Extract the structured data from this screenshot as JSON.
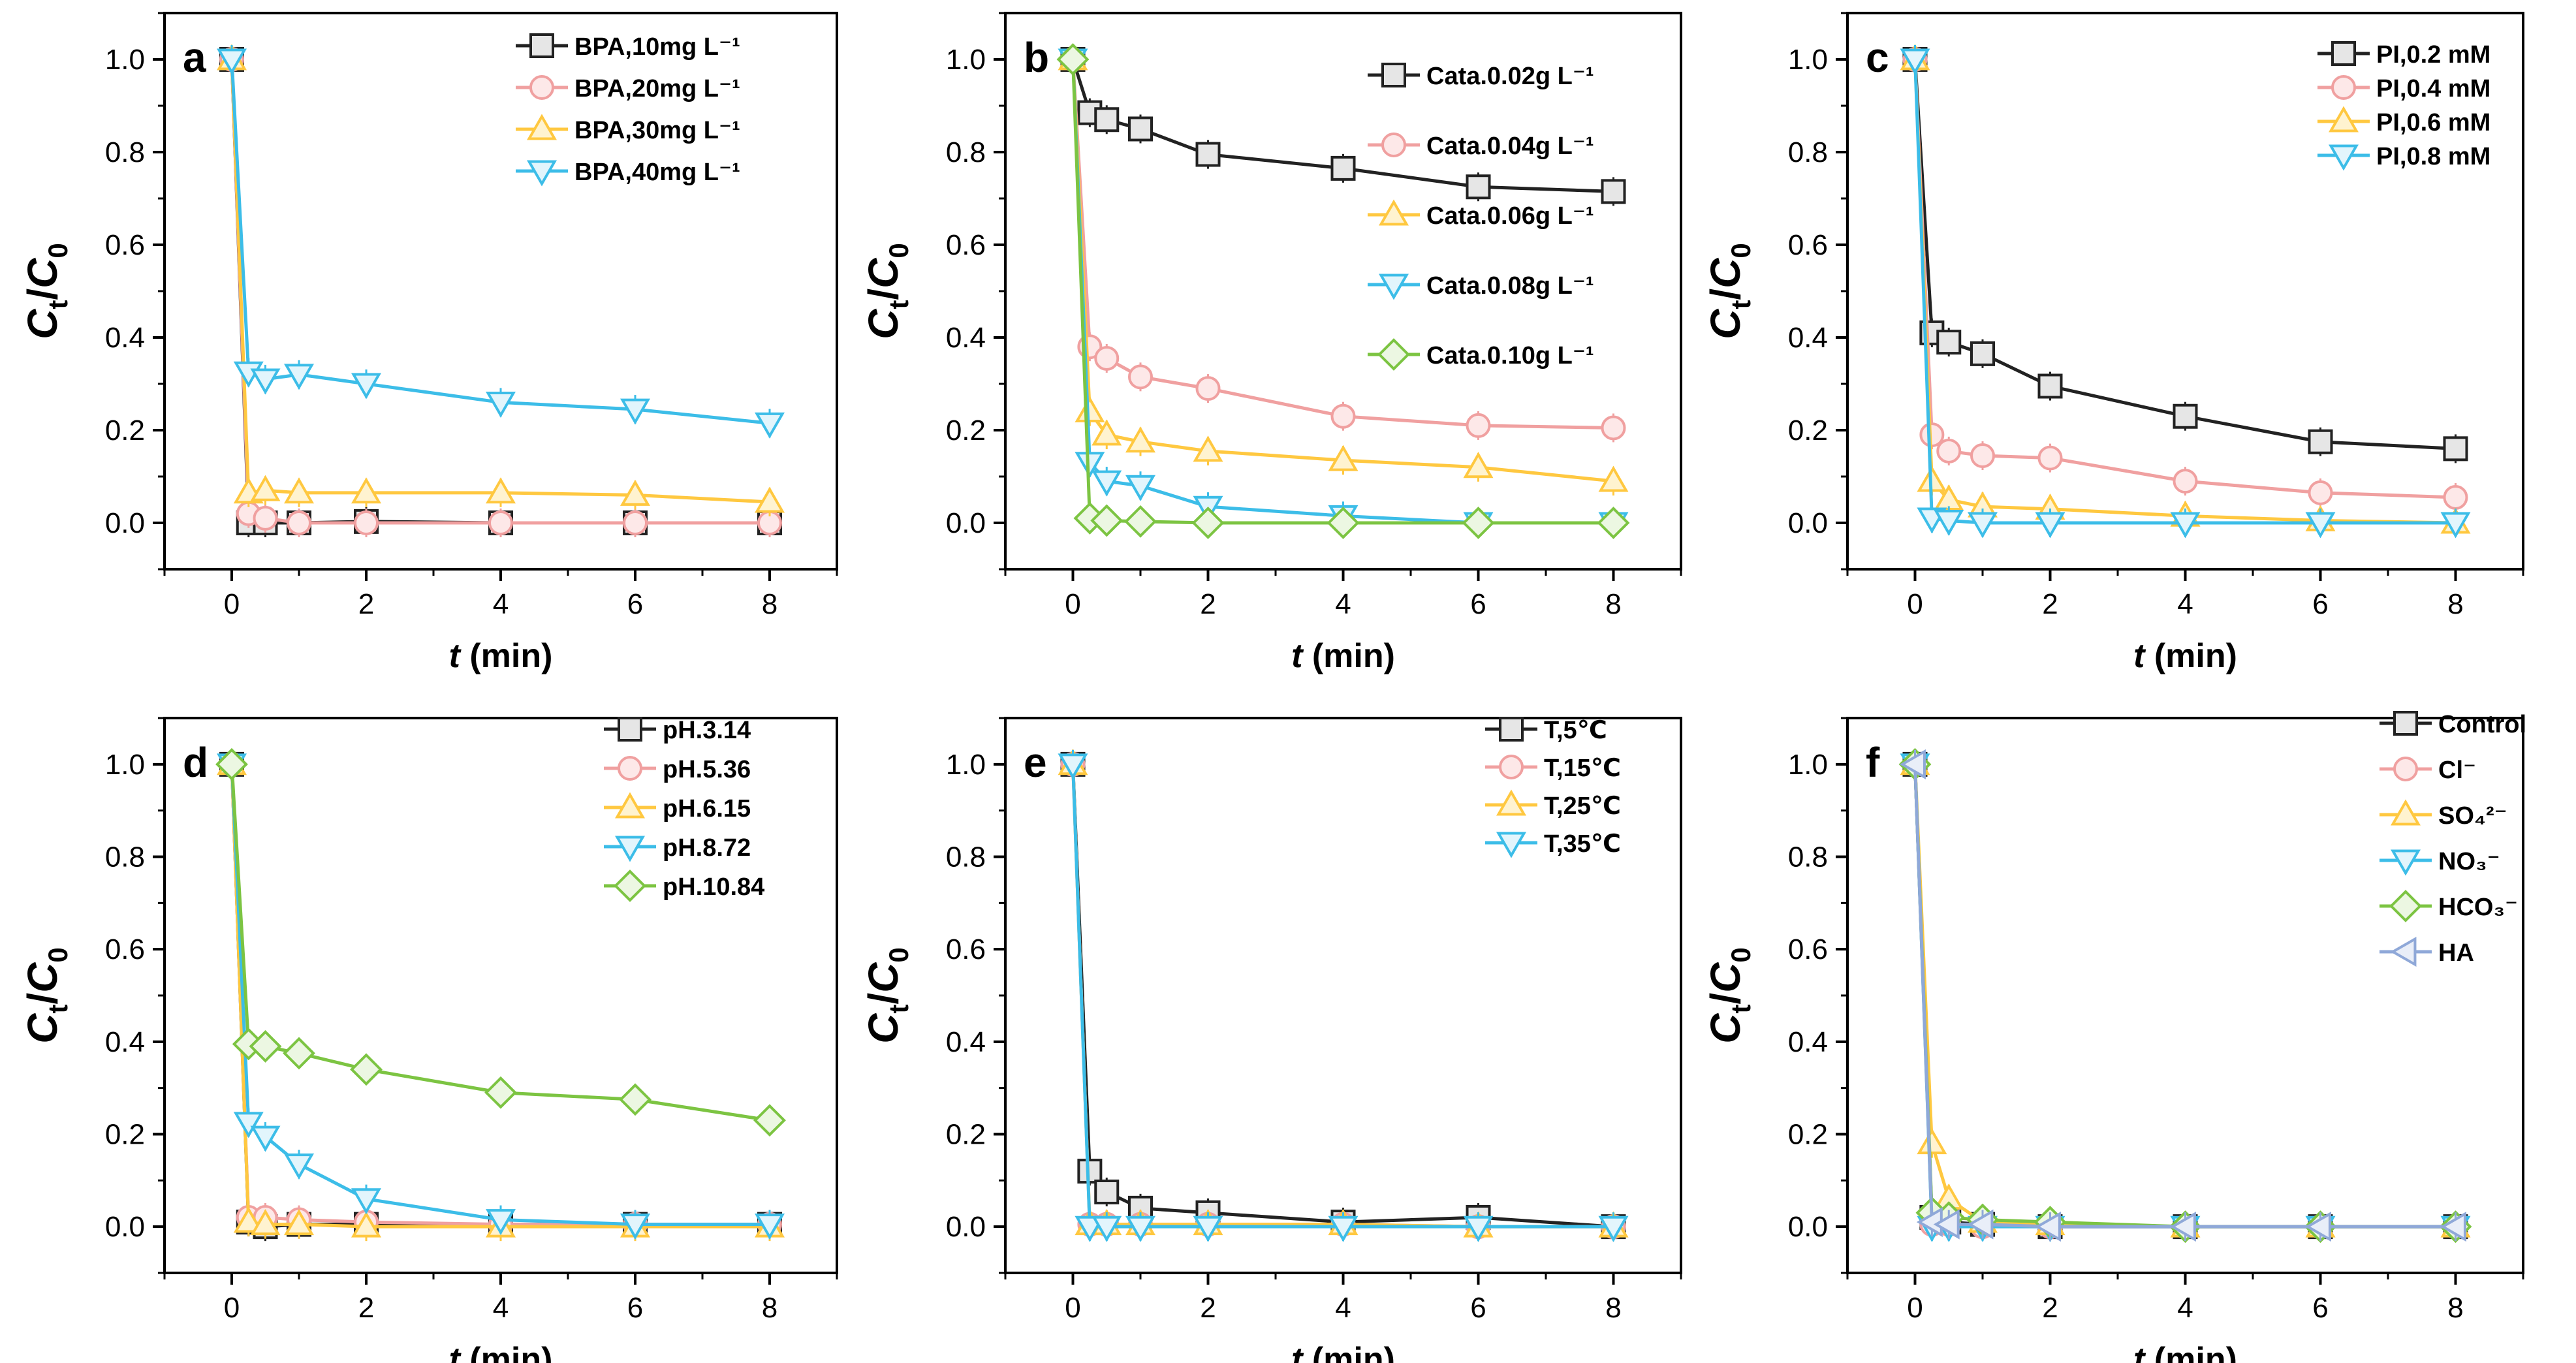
{
  "figure_title": "",
  "chart_data": [
    {
      "panel": "a",
      "type": "line",
      "xlabel": "t",
      "xlabel_unit": "(min)",
      "ylabel": "Ct/C0",
      "xlim": [
        -1,
        9
      ],
      "ylim": [
        -0.1,
        1.1
      ],
      "xticks": [
        0,
        2,
        4,
        6,
        8
      ],
      "yticks": [
        0.0,
        0.2,
        0.4,
        0.6,
        0.8,
        1.0
      ],
      "xtick_labels": [
        "0",
        "2",
        "4",
        "6",
        "8"
      ],
      "ytick_labels": [
        "0.0",
        "0.2",
        "0.4",
        "0.6",
        "0.8",
        "1.0"
      ],
      "legend_position": "top-right",
      "series": [
        {
          "name": "BPA,10mg L⁻¹",
          "marker": "square",
          "color": "#222222",
          "x": [
            0,
            0.25,
            0.5,
            1,
            2,
            4,
            6,
            8
          ],
          "y": [
            1.0,
            0.0,
            0.0,
            0.0,
            0.003,
            0.0,
            0.0,
            0.0
          ]
        },
        {
          "name": "BPA,20mg L⁻¹",
          "marker": "circle",
          "color": "#f0a0a0",
          "x": [
            0,
            0.25,
            0.5,
            1,
            2,
            4,
            6,
            8
          ],
          "y": [
            1.0,
            0.02,
            0.01,
            0.0,
            0.0,
            0.0,
            0.0,
            0.0
          ]
        },
        {
          "name": "BPA,30mg L⁻¹",
          "marker": "triangle-up",
          "color": "#ffc840",
          "x": [
            0,
            0.25,
            0.5,
            1,
            2,
            4,
            6,
            8
          ],
          "y": [
            1.0,
            0.065,
            0.07,
            0.065,
            0.065,
            0.065,
            0.06,
            0.045
          ]
        },
        {
          "name": "BPA,40mg L⁻¹",
          "marker": "triangle-down",
          "color": "#3cbde8",
          "x": [
            0,
            0.25,
            0.5,
            1,
            2,
            4,
            6,
            8
          ],
          "y": [
            1.0,
            0.325,
            0.31,
            0.32,
            0.3,
            0.26,
            0.245,
            0.215
          ]
        }
      ]
    },
    {
      "panel": "b",
      "type": "line",
      "xlabel": "t",
      "xlabel_unit": "(min)",
      "ylabel": "Ct/C0",
      "xlim": [
        -1,
        9
      ],
      "ylim": [
        -0.1,
        1.1
      ],
      "xticks": [
        0,
        2,
        4,
        6,
        8
      ],
      "yticks": [
        0.0,
        0.2,
        0.4,
        0.6,
        0.8,
        1.0
      ],
      "xtick_labels": [
        "0",
        "2",
        "4",
        "6",
        "8"
      ],
      "ytick_labels": [
        "0.0",
        "0.2",
        "0.4",
        "0.6",
        "0.8",
        "1.0"
      ],
      "legend_position": "right",
      "series": [
        {
          "name": "Cata.0.02g L⁻¹",
          "marker": "square",
          "color": "#222222",
          "x": [
            0,
            0.25,
            0.5,
            1,
            2,
            4,
            6,
            8
          ],
          "y": [
            1.0,
            0.885,
            0.87,
            0.85,
            0.795,
            0.765,
            0.725,
            0.715
          ]
        },
        {
          "name": "Cata.0.04g L⁻¹",
          "marker": "circle",
          "color": "#f0a0a0",
          "x": [
            0,
            0.25,
            0.5,
            1,
            2,
            4,
            6,
            8
          ],
          "y": [
            1.0,
            0.38,
            0.355,
            0.315,
            0.29,
            0.23,
            0.21,
            0.205
          ]
        },
        {
          "name": "Cata.0.06g L⁻¹",
          "marker": "triangle-up",
          "color": "#ffc840",
          "x": [
            0,
            0.25,
            0.5,
            1,
            2,
            4,
            6,
            8
          ],
          "y": [
            1.0,
            0.24,
            0.19,
            0.175,
            0.155,
            0.135,
            0.12,
            0.09
          ]
        },
        {
          "name": "Cata.0.08g L⁻¹",
          "marker": "triangle-down",
          "color": "#3cbde8",
          "x": [
            0,
            0.25,
            0.5,
            1,
            2,
            4,
            6,
            8
          ],
          "y": [
            1.0,
            0.13,
            0.09,
            0.08,
            0.035,
            0.015,
            0.0,
            0.0
          ]
        },
        {
          "name": "Cata.0.10g L⁻¹",
          "marker": "diamond",
          "color": "#7cc442",
          "x": [
            0,
            0.25,
            0.5,
            1,
            2,
            4,
            6,
            8
          ],
          "y": [
            1.0,
            0.01,
            0.005,
            0.003,
            0.0,
            0.0,
            0.0,
            0.0
          ]
        }
      ]
    },
    {
      "panel": "c",
      "type": "line",
      "xlabel": "t",
      "xlabel_unit": "(min)",
      "ylabel": "Ct/C0",
      "xlim": [
        -1,
        9
      ],
      "ylim": [
        -0.1,
        1.1
      ],
      "xticks": [
        0,
        2,
        4,
        6,
        8
      ],
      "yticks": [
        0.0,
        0.2,
        0.4,
        0.6,
        0.8,
        1.0
      ],
      "xtick_labels": [
        "0",
        "2",
        "4",
        "6",
        "8"
      ],
      "ytick_labels": [
        "0.0",
        "0.2",
        "0.4",
        "0.6",
        "0.8",
        "1.0"
      ],
      "legend_position": "top-right",
      "series": [
        {
          "name": "PI,0.2 mM",
          "marker": "square",
          "color": "#222222",
          "x": [
            0,
            0.25,
            0.5,
            1,
            2,
            4,
            6,
            8
          ],
          "y": [
            1.0,
            0.41,
            0.39,
            0.365,
            0.295,
            0.23,
            0.175,
            0.16
          ]
        },
        {
          "name": "PI,0.4 mM",
          "marker": "circle",
          "color": "#f0a0a0",
          "x": [
            0,
            0.25,
            0.5,
            1,
            2,
            4,
            6,
            8
          ],
          "y": [
            1.0,
            0.19,
            0.155,
            0.145,
            0.14,
            0.09,
            0.065,
            0.055
          ]
        },
        {
          "name": "PI,0.6 mM",
          "marker": "triangle-up",
          "color": "#ffc840",
          "x": [
            0,
            0.25,
            0.5,
            1,
            2,
            4,
            6,
            8
          ],
          "y": [
            1.0,
            0.09,
            0.05,
            0.035,
            0.03,
            0.015,
            0.005,
            0.0
          ]
        },
        {
          "name": "PI,0.8 mM",
          "marker": "triangle-down",
          "color": "#3cbde8",
          "x": [
            0,
            0.25,
            0.5,
            1,
            2,
            4,
            6,
            8
          ],
          "y": [
            1.0,
            0.01,
            0.005,
            0.0,
            0.0,
            0.0,
            0.0,
            0.0
          ]
        }
      ]
    },
    {
      "panel": "d",
      "type": "line",
      "xlabel": "t",
      "xlabel_unit": "(min)",
      "ylabel": "Ct/C0",
      "xlim": [
        -1,
        9
      ],
      "ylim": [
        -0.1,
        1.1
      ],
      "xticks": [
        0,
        2,
        4,
        6,
        8
      ],
      "yticks": [
        0.0,
        0.2,
        0.4,
        0.6,
        0.8,
        1.0
      ],
      "xtick_labels": [
        "0",
        "2",
        "4",
        "6",
        "8"
      ],
      "ytick_labels": [
        "0.0",
        "0.2",
        "0.4",
        "0.6",
        "0.8",
        "1.0"
      ],
      "legend_position": "top-right",
      "series": [
        {
          "name": "pH.3.14",
          "marker": "square",
          "color": "#222222",
          "x": [
            0,
            0.25,
            0.5,
            1,
            2,
            4,
            6,
            8
          ],
          "y": [
            1.0,
            0.01,
            0.0,
            0.005,
            0.005,
            0.005,
            0.005,
            0.005
          ]
        },
        {
          "name": "pH.5.36",
          "marker": "circle",
          "color": "#f0a0a0",
          "x": [
            0,
            0.25,
            0.5,
            1,
            2,
            4,
            6,
            8
          ],
          "y": [
            1.0,
            0.02,
            0.02,
            0.015,
            0.01,
            0.005,
            0.005,
            0.005
          ]
        },
        {
          "name": "pH.6.15",
          "marker": "triangle-up",
          "color": "#ffc840",
          "x": [
            0,
            0.25,
            0.5,
            1,
            2,
            4,
            6,
            8
          ],
          "y": [
            1.0,
            0.01,
            0.005,
            0.005,
            0.0,
            0.0,
            0.0,
            0.0
          ]
        },
        {
          "name": "pH.8.72",
          "marker": "triangle-down",
          "color": "#3cbde8",
          "x": [
            0,
            0.25,
            0.5,
            1,
            2,
            4,
            6,
            8
          ],
          "y": [
            1.0,
            0.225,
            0.195,
            0.135,
            0.06,
            0.015,
            0.005,
            0.005
          ]
        },
        {
          "name": "pH.10.84",
          "marker": "diamond",
          "color": "#7cc442",
          "x": [
            0,
            0.25,
            0.5,
            1,
            2,
            4,
            6,
            8
          ],
          "y": [
            1.0,
            0.395,
            0.39,
            0.375,
            0.34,
            0.29,
            0.275,
            0.23
          ]
        }
      ]
    },
    {
      "panel": "e",
      "type": "line",
      "xlabel": "t",
      "xlabel_unit": "(min)",
      "ylabel": "Ct/C0",
      "xlim": [
        -1,
        9
      ],
      "ylim": [
        -0.1,
        1.1
      ],
      "xticks": [
        0,
        2,
        4,
        6,
        8
      ],
      "yticks": [
        0.0,
        0.2,
        0.4,
        0.6,
        0.8,
        1.0
      ],
      "xtick_labels": [
        "0",
        "2",
        "4",
        "6",
        "8"
      ],
      "ytick_labels": [
        "0.0",
        "0.2",
        "0.4",
        "0.6",
        "0.8",
        "1.0"
      ],
      "legend_position": "top-right",
      "series": [
        {
          "name": "T,5℃",
          "marker": "square",
          "color": "#222222",
          "x": [
            0,
            0.25,
            0.5,
            1,
            2,
            4,
            6,
            8
          ],
          "y": [
            1.0,
            0.12,
            0.075,
            0.04,
            0.03,
            0.01,
            0.02,
            0.0
          ]
        },
        {
          "name": "T,15℃",
          "marker": "circle",
          "color": "#f0a0a0",
          "x": [
            0,
            0.25,
            0.5,
            1,
            2,
            4,
            6,
            8
          ],
          "y": [
            1.0,
            0.005,
            0.005,
            0.005,
            0.005,
            0.005,
            0.0,
            0.0
          ]
        },
        {
          "name": "T,25℃",
          "marker": "triangle-up",
          "color": "#ffc840",
          "x": [
            0,
            0.25,
            0.5,
            1,
            2,
            4,
            6,
            8
          ],
          "y": [
            1.0,
            0.005,
            0.005,
            0.005,
            0.005,
            0.005,
            0.0,
            0.0
          ]
        },
        {
          "name": "T,35℃",
          "marker": "triangle-down",
          "color": "#3cbde8",
          "x": [
            0,
            0.25,
            0.5,
            1,
            2,
            4,
            6,
            8
          ],
          "y": [
            1.0,
            0.0,
            0.0,
            0.0,
            0.0,
            0.0,
            0.0,
            0.0
          ]
        }
      ]
    },
    {
      "panel": "f",
      "type": "line",
      "xlabel": "t",
      "xlabel_unit": "(min)",
      "ylabel": "Ct/C0",
      "xlim": [
        -1,
        9
      ],
      "ylim": [
        -0.1,
        1.1
      ],
      "xticks": [
        0,
        2,
        4,
        6,
        8
      ],
      "yticks": [
        0.0,
        0.2,
        0.4,
        0.6,
        0.8,
        1.0
      ],
      "xtick_labels": [
        "0",
        "2",
        "4",
        "6",
        "8"
      ],
      "ytick_labels": [
        "0.0",
        "0.2",
        "0.4",
        "0.6",
        "0.8",
        "1.0"
      ],
      "legend_position": "top-right",
      "series": [
        {
          "name": "Control",
          "marker": "square",
          "color": "#222222",
          "x": [
            0,
            0.25,
            0.5,
            1,
            2,
            4,
            6,
            8
          ],
          "y": [
            1.0,
            0.02,
            0.01,
            0.005,
            0.0,
            0.0,
            0.0,
            0.0
          ]
        },
        {
          "name": "Cl⁻",
          "marker": "circle",
          "color": "#f0a0a0",
          "x": [
            0,
            0.25,
            0.5,
            1,
            2,
            4,
            6,
            8
          ],
          "y": [
            1.0,
            0.005,
            0.005,
            0.0,
            0.0,
            0.0,
            0.0,
            0.0
          ]
        },
        {
          "name": "SO₄²⁻",
          "marker": "triangle-up",
          "color": "#ffc840",
          "x": [
            0,
            0.25,
            0.5,
            1,
            2,
            4,
            6,
            8
          ],
          "y": [
            1.0,
            0.18,
            0.06,
            0.01,
            0.005,
            0.0,
            0.0,
            0.0
          ]
        },
        {
          "name": "NO₃⁻",
          "marker": "triangle-down",
          "color": "#3cbde8",
          "x": [
            0,
            0.25,
            0.5,
            1,
            2,
            4,
            6,
            8
          ],
          "y": [
            1.0,
            0.0,
            0.0,
            0.0,
            0.0,
            0.0,
            0.0,
            0.0
          ]
        },
        {
          "name": "HCO₃⁻",
          "marker": "diamond",
          "color": "#7cc442",
          "x": [
            0,
            0.25,
            0.5,
            1,
            2,
            4,
            6,
            8
          ],
          "y": [
            1.0,
            0.03,
            0.02,
            0.015,
            0.01,
            0.0,
            0.0,
            0.0
          ]
        },
        {
          "name": "HA",
          "marker": "triangle-left",
          "color": "#8fa8d8",
          "x": [
            0,
            0.25,
            0.5,
            1,
            2,
            4,
            6,
            8
          ],
          "y": [
            1.0,
            0.01,
            0.005,
            0.005,
            0.0,
            0.0,
            0.0,
            0.0
          ]
        }
      ]
    }
  ]
}
